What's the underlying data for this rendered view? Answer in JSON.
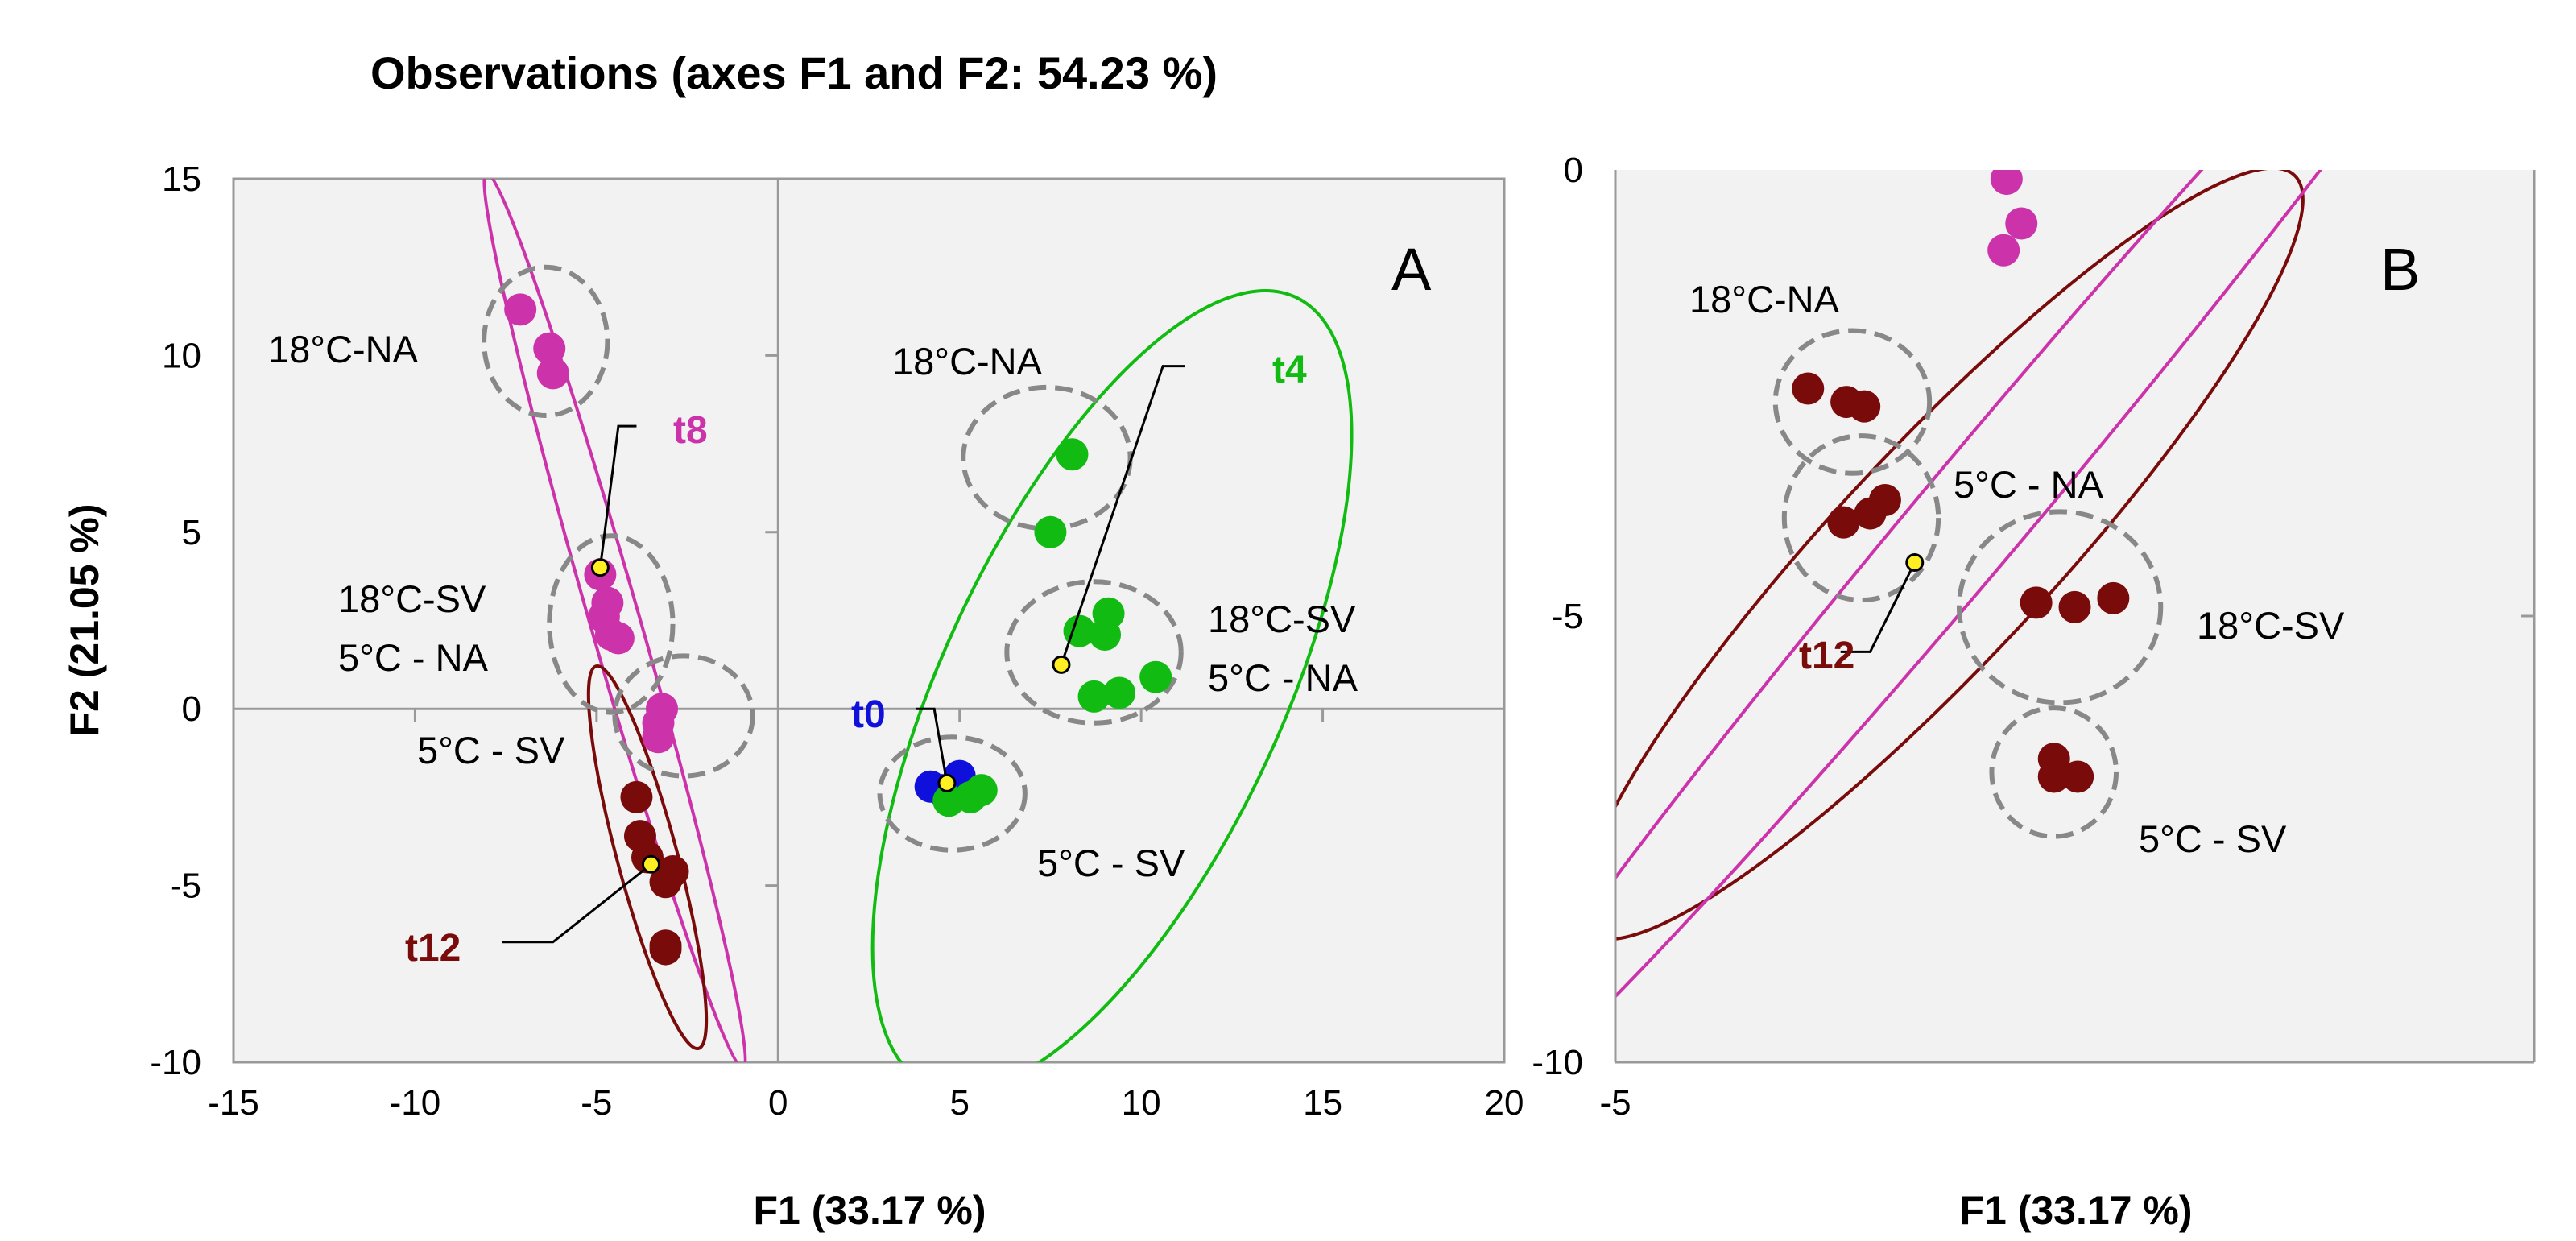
{
  "chart_data": [
    {
      "id": "A",
      "type": "scatter",
      "title": "Observations (axes F1 and F2: 54.23 %)",
      "panel_label": "A",
      "xlabel": "F1 (33.17 %)",
      "ylabel": "F2 (21.05 %)",
      "xlim": [
        -15,
        20
      ],
      "ylim": [
        -10,
        15
      ],
      "xticks": [
        "-15",
        "-10",
        "-5",
        "0",
        "5",
        "10",
        "15",
        "20"
      ],
      "yticks": [
        "-10",
        "-5",
        "0",
        "5",
        "10",
        "15"
      ],
      "colors": {
        "t0": "#1010dd",
        "t4": "#11bb11",
        "t8": "#cc33aa",
        "t12": "#7a0b0b",
        "centroid": "#ffee22",
        "group": "#888888"
      },
      "series": [
        {
          "name": "t0",
          "points": [
            [
              4.2,
              -2.2
            ],
            [
              5.0,
              -1.9
            ],
            [
              4.5,
              -2.3
            ]
          ]
        },
        {
          "name": "t4",
          "points": [
            [
              8.1,
              7.2
            ],
            [
              7.5,
              5.0
            ],
            [
              8.3,
              2.2
            ],
            [
              9.1,
              2.7
            ],
            [
              9.0,
              2.1
            ],
            [
              10.4,
              0.9
            ],
            [
              8.7,
              0.35
            ],
            [
              9.4,
              0.45
            ],
            [
              4.7,
              -2.6
            ],
            [
              5.3,
              -2.5
            ],
            [
              5.6,
              -2.3
            ]
          ]
        },
        {
          "name": "t8",
          "points": [
            [
              -7.1,
              11.3
            ],
            [
              -6.3,
              10.2
            ],
            [
              -6.2,
              9.5
            ],
            [
              -4.9,
              3.8
            ],
            [
              -4.7,
              3.0
            ],
            [
              -4.8,
              2.6
            ],
            [
              -4.6,
              2.1
            ],
            [
              -4.4,
              2.0
            ],
            [
              -3.2,
              0.0
            ],
            [
              -3.3,
              -0.4
            ],
            [
              -3.3,
              -0.8
            ]
          ]
        },
        {
          "name": "t12",
          "points": [
            [
              -3.9,
              -2.5
            ],
            [
              -3.8,
              -3.6
            ],
            [
              -3.6,
              -4.2
            ],
            [
              -2.9,
              -4.6
            ],
            [
              -3.1,
              -4.9
            ],
            [
              -3.1,
              -6.7
            ],
            [
              -3.1,
              -6.8
            ]
          ]
        }
      ],
      "centroids": [
        {
          "series": "t0",
          "x": 4.65,
          "y": -2.1,
          "label": "t0"
        },
        {
          "series": "t4",
          "x": 7.8,
          "y": 1.25,
          "label": "t4"
        },
        {
          "series": "t8",
          "x": -4.9,
          "y": 4.0,
          "label": "t8"
        },
        {
          "series": "t12",
          "x": -3.5,
          "y": -4.4,
          "label": "t12"
        }
      ],
      "ellipses": [
        {
          "series": "t4",
          "cx": 9.2,
          "cy": 0.5,
          "rx": 12.3,
          "ry": 4.8,
          "angle": 65
        },
        {
          "series": "t8",
          "cx": -4.5,
          "cy": 2.5,
          "rx": 13.2,
          "ry": 0.7,
          "angle": -74
        },
        {
          "series": "t12",
          "cx": -3.6,
          "cy": -4.2,
          "rx": 5.6,
          "ry": 0.85,
          "angle": -75
        }
      ],
      "groups": [
        {
          "label": "18°C-NA",
          "cx": -6.4,
          "cy": 10.4,
          "rx": 1.7,
          "ry": 2.1
        },
        {
          "label": "18°C-SV / 5°C - NA",
          "cx": -4.6,
          "cy": 2.4,
          "rx": 1.7,
          "ry": 2.5
        },
        {
          "label": "5°C - SV",
          "cx": -2.6,
          "cy": -0.2,
          "rx": 1.9,
          "ry": 1.7
        },
        {
          "label": "18°C-NA",
          "cx": 7.4,
          "cy": 7.1,
          "rx": 2.3,
          "ry": 2.0
        },
        {
          "label": "18°C-SV / 5°C - NA",
          "cx": 8.7,
          "cy": 1.6,
          "rx": 2.4,
          "ry": 2.0
        },
        {
          "label": "5°C - SV",
          "cx": 4.8,
          "cy": -2.4,
          "rx": 2.0,
          "ry": 1.6
        }
      ],
      "annotations": [
        "18°C-NA",
        "18°C-SV",
        "5°C - NA",
        "5°C - SV",
        "18°C-NA",
        "18°C-SV",
        "5°C - NA",
        "5°C - SV",
        "t0",
        "t4",
        "t8",
        "t12"
      ]
    },
    {
      "id": "B",
      "type": "scatter",
      "title": "",
      "panel_label": "B",
      "xlabel": "F1 (33.17 %)",
      "ylabel": "",
      "xlim": [
        -5,
        -1.9
      ],
      "ylim": [
        -10,
        0
      ],
      "xticks": [
        "-5"
      ],
      "yticks": [
        "-10",
        "-5",
        "0"
      ],
      "colors": {
        "t8": "#cc33aa",
        "t12": "#7a0b0b",
        "centroid": "#ffee22",
        "group": "#888888"
      },
      "series": [
        {
          "name": "t8",
          "points": [
            [
              -3.68,
              -0.1
            ],
            [
              -3.63,
              -0.6
            ],
            [
              -3.69,
              -0.9
            ]
          ]
        },
        {
          "name": "t12",
          "points": [
            [
              -4.35,
              -2.45
            ],
            [
              -4.22,
              -2.6
            ],
            [
              -4.16,
              -2.65
            ],
            [
              -4.09,
              -3.7
            ],
            [
              -4.14,
              -3.85
            ],
            [
              -4.23,
              -3.95
            ],
            [
              -3.58,
              -4.85
            ],
            [
              -3.45,
              -4.9
            ],
            [
              -3.32,
              -4.8
            ],
            [
              -3.52,
              -6.6
            ],
            [
              -3.52,
              -6.8
            ],
            [
              -3.44,
              -6.8
            ]
          ]
        }
      ],
      "centroids": [
        {
          "series": "t12",
          "x": -3.99,
          "y": -4.4,
          "label": "t12"
        }
      ],
      "ellipses": [
        {
          "series": "t12",
          "cx": -3.9,
          "cy": -4.3,
          "rx": 5.8,
          "ry": 1.2,
          "angle": 47
        },
        {
          "series": "t8",
          "cx": -3.75,
          "cy": -3.7,
          "rx": 9.2,
          "ry": 0.6,
          "angle": 50
        }
      ],
      "groups": [
        {
          "label": "18°C-NA",
          "cx": -4.2,
          "cy": -2.6,
          "rx": 0.26,
          "ry": 0.8
        },
        {
          "label": "5°C - NA",
          "cx": -4.17,
          "cy": -3.9,
          "rx": 0.26,
          "ry": 0.92
        },
        {
          "label": "18°C-SV",
          "cx": -3.5,
          "cy": -4.9,
          "rx": 0.34,
          "ry": 1.07
        },
        {
          "label": "5°C - SV",
          "cx": -3.52,
          "cy": -6.75,
          "rx": 0.21,
          "ry": 0.72
        }
      ],
      "annotations": [
        "18°C-NA",
        "5°C - NA",
        "18°C-SV",
        "5°C - SV",
        "t12"
      ]
    }
  ]
}
